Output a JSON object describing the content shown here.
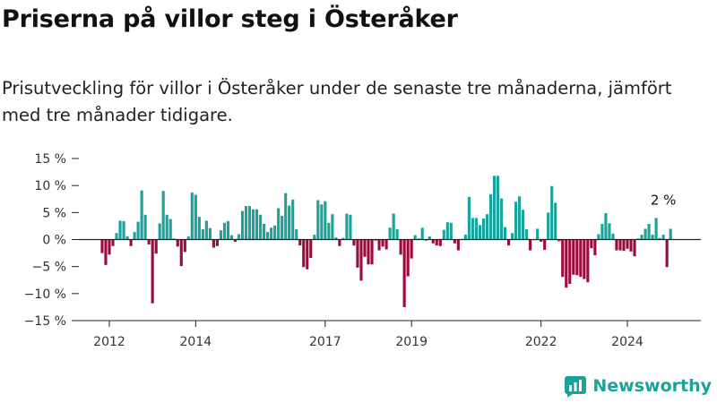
{
  "header": {
    "title": "Priserna på villor steg i Österåker",
    "subtitle": "Prisutveckling för villor i Österåker under de senaste tre månaderna, jämfört med tre månader tidigare."
  },
  "brand": {
    "name": "Newsworthy",
    "icon": "newsworthy-logo-icon"
  },
  "colors": {
    "positive": "#1aa39a",
    "negative": "#9b0a3c",
    "axis": "#222222",
    "brand": "#1aa39a"
  },
  "chart_data": {
    "type": "bar",
    "title": "",
    "xlabel": "",
    "ylabel": "",
    "ylim": [
      -15,
      15
    ],
    "y_ticks": [
      15,
      10,
      5,
      0,
      -5,
      -10,
      -15
    ],
    "y_tick_labels": [
      "15 %",
      "10 %",
      "5 %",
      "0 %",
      "−5 %",
      "−10 %",
      "−15 %"
    ],
    "x_tick_labels": [
      {
        "label": "2012",
        "date": "2012-01"
      },
      {
        "label": "2014",
        "date": "2014-01"
      },
      {
        "label": "2017",
        "date": "2017-01"
      },
      {
        "label": "2019",
        "date": "2019-01"
      },
      {
        "label": "2022",
        "date": "2022-01"
      },
      {
        "label": "2024",
        "date": "2024-01"
      }
    ],
    "grid": false,
    "series": [
      {
        "start": "2011-11",
        "frequency": "monthly",
        "values": [
          -2.5,
          -4.7,
          -2.8,
          -1.2,
          1.2,
          3.5,
          3.4,
          0.6,
          -1.2,
          1.4,
          3.3,
          9.1,
          4.6,
          -0.9,
          -11.8,
          -2.6,
          3.0,
          9.0,
          4.6,
          3.8,
          0.2,
          -1.3,
          -4.9,
          -2.3,
          0.6,
          8.7,
          8.3,
          4.2,
          1.9,
          3.5,
          2.1,
          -1.5,
          -1.2,
          1.7,
          3.1,
          3.4,
          0.8,
          -0.4,
          1.0,
          5.3,
          6.2,
          6.2,
          5.6,
          5.6,
          4.6,
          2.9,
          1.4,
          2.2,
          2.6,
          5.8,
          4.4,
          8.6,
          6.3,
          7.4,
          1.9,
          -1.1,
          -5.1,
          -5.5,
          -3.4,
          0.9,
          7.3,
          6.5,
          7.1,
          3.1,
          4.7,
          0.4,
          -1.2,
          0.3,
          4.8,
          4.6,
          -1.1,
          -5.2,
          -7.6,
          -3.2,
          -4.6,
          -4.6,
          -0.2,
          -2.0,
          -1.3,
          -1.8,
          2.2,
          4.8,
          1.9,
          -2.8,
          -12.5,
          -6.8,
          -3.5,
          0.8,
          0.2,
          2.2,
          -0.2,
          0.6,
          -0.7,
          -1.1,
          -1.2,
          1.8,
          3.2,
          3.1,
          -0.7,
          -2.0,
          0.1,
          0.9,
          7.9,
          4.0,
          4.0,
          2.7,
          3.9,
          4.7,
          8.4,
          11.8,
          11.8,
          7.6,
          2.3,
          -1.1,
          1.2,
          7.0,
          8.0,
          5.5,
          1.9,
          -2.0,
          -0.1,
          2.0,
          -0.4,
          -1.9,
          5.0,
          9.9,
          6.8,
          -0.3,
          -6.9,
          -8.9,
          -8.2,
          -6.5,
          -6.6,
          -6.9,
          -7.3,
          -7.9,
          -1.6,
          -2.9,
          1.0,
          2.9,
          4.9,
          3.0,
          1.1,
          -2.0,
          -2.0,
          -2.1,
          -1.7,
          -2.2,
          -3.1,
          0.2,
          0.9,
          2.0,
          2.9,
          0.9,
          4.0,
          0.3,
          0.9,
          -5.1,
          2.0
        ]
      }
    ],
    "annotations": [
      {
        "text": "2 %",
        "date": "2024-11",
        "value": 2
      }
    ]
  }
}
